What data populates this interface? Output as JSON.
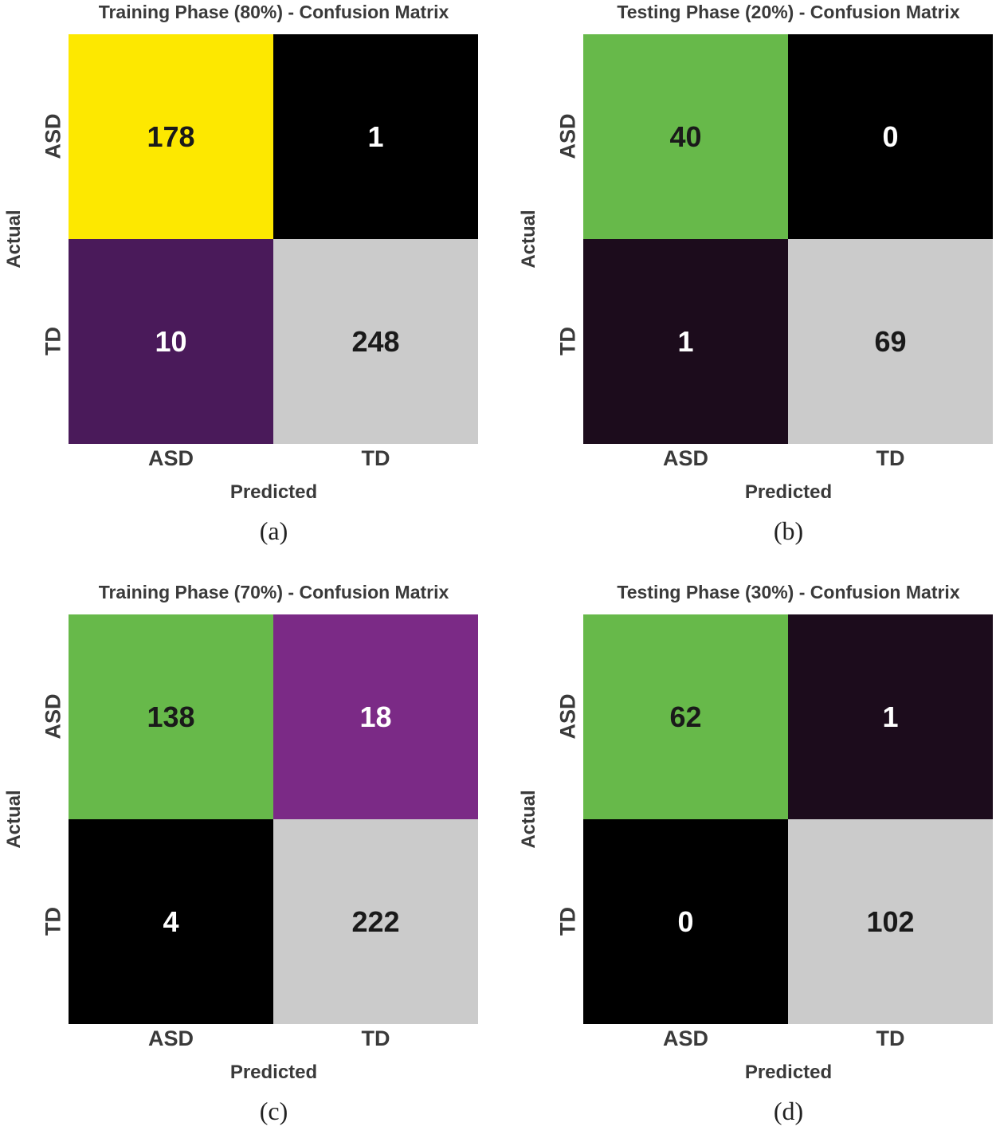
{
  "chart_data": [
    {
      "type": "heatmap",
      "title": "Training Phase (80%) - Confusion Matrix",
      "caption": "(a)",
      "xlabel": "Predicted",
      "ylabel": "Actual",
      "x_categories": [
        "ASD",
        "TD"
      ],
      "y_categories": [
        "ASD",
        "TD"
      ],
      "values": [
        [
          178,
          1
        ],
        [
          10,
          248
        ]
      ],
      "cell_colors": [
        [
          "#fde800",
          "#000000"
        ],
        [
          "#4a1a5a",
          "#cbcbcb"
        ]
      ],
      "text_colors": [
        [
          "#1a1a1a",
          "#ffffff"
        ],
        [
          "#ffffff",
          "#1a1a1a"
        ]
      ]
    },
    {
      "type": "heatmap",
      "title": "Testing Phase (20%) - Confusion Matrix",
      "caption": "(b)",
      "xlabel": "Predicted",
      "ylabel": "Actual",
      "x_categories": [
        "ASD",
        "TD"
      ],
      "y_categories": [
        "ASD",
        "TD"
      ],
      "values": [
        [
          40,
          0
        ],
        [
          1,
          69
        ]
      ],
      "cell_colors": [
        [
          "#67b94a",
          "#000000"
        ],
        [
          "#1c0c1c",
          "#cbcbcb"
        ]
      ],
      "text_colors": [
        [
          "#1a1a1a",
          "#ffffff"
        ],
        [
          "#ffffff",
          "#1a1a1a"
        ]
      ]
    },
    {
      "type": "heatmap",
      "title": "Training Phase (70%) - Confusion Matrix",
      "caption": "(c)",
      "xlabel": "Predicted",
      "ylabel": "Actual",
      "x_categories": [
        "ASD",
        "TD"
      ],
      "y_categories": [
        "ASD",
        "TD"
      ],
      "values": [
        [
          138,
          18
        ],
        [
          4,
          222
        ]
      ],
      "cell_colors": [
        [
          "#67b94a",
          "#7b2a86"
        ],
        [
          "#000000",
          "#cbcbcb"
        ]
      ],
      "text_colors": [
        [
          "#1a1a1a",
          "#ffffff"
        ],
        [
          "#ffffff",
          "#1a1a1a"
        ]
      ]
    },
    {
      "type": "heatmap",
      "title": "Testing Phase (30%) - Confusion Matrix",
      "caption": "(d)",
      "xlabel": "Predicted",
      "ylabel": "Actual",
      "x_categories": [
        "ASD",
        "TD"
      ],
      "y_categories": [
        "ASD",
        "TD"
      ],
      "values": [
        [
          62,
          1
        ],
        [
          0,
          102
        ]
      ],
      "cell_colors": [
        [
          "#67b94a",
          "#1c0c1c"
        ],
        [
          "#000000",
          "#cbcbcb"
        ]
      ],
      "text_colors": [
        [
          "#1a1a1a",
          "#ffffff"
        ],
        [
          "#ffffff",
          "#1a1a1a"
        ]
      ]
    }
  ]
}
